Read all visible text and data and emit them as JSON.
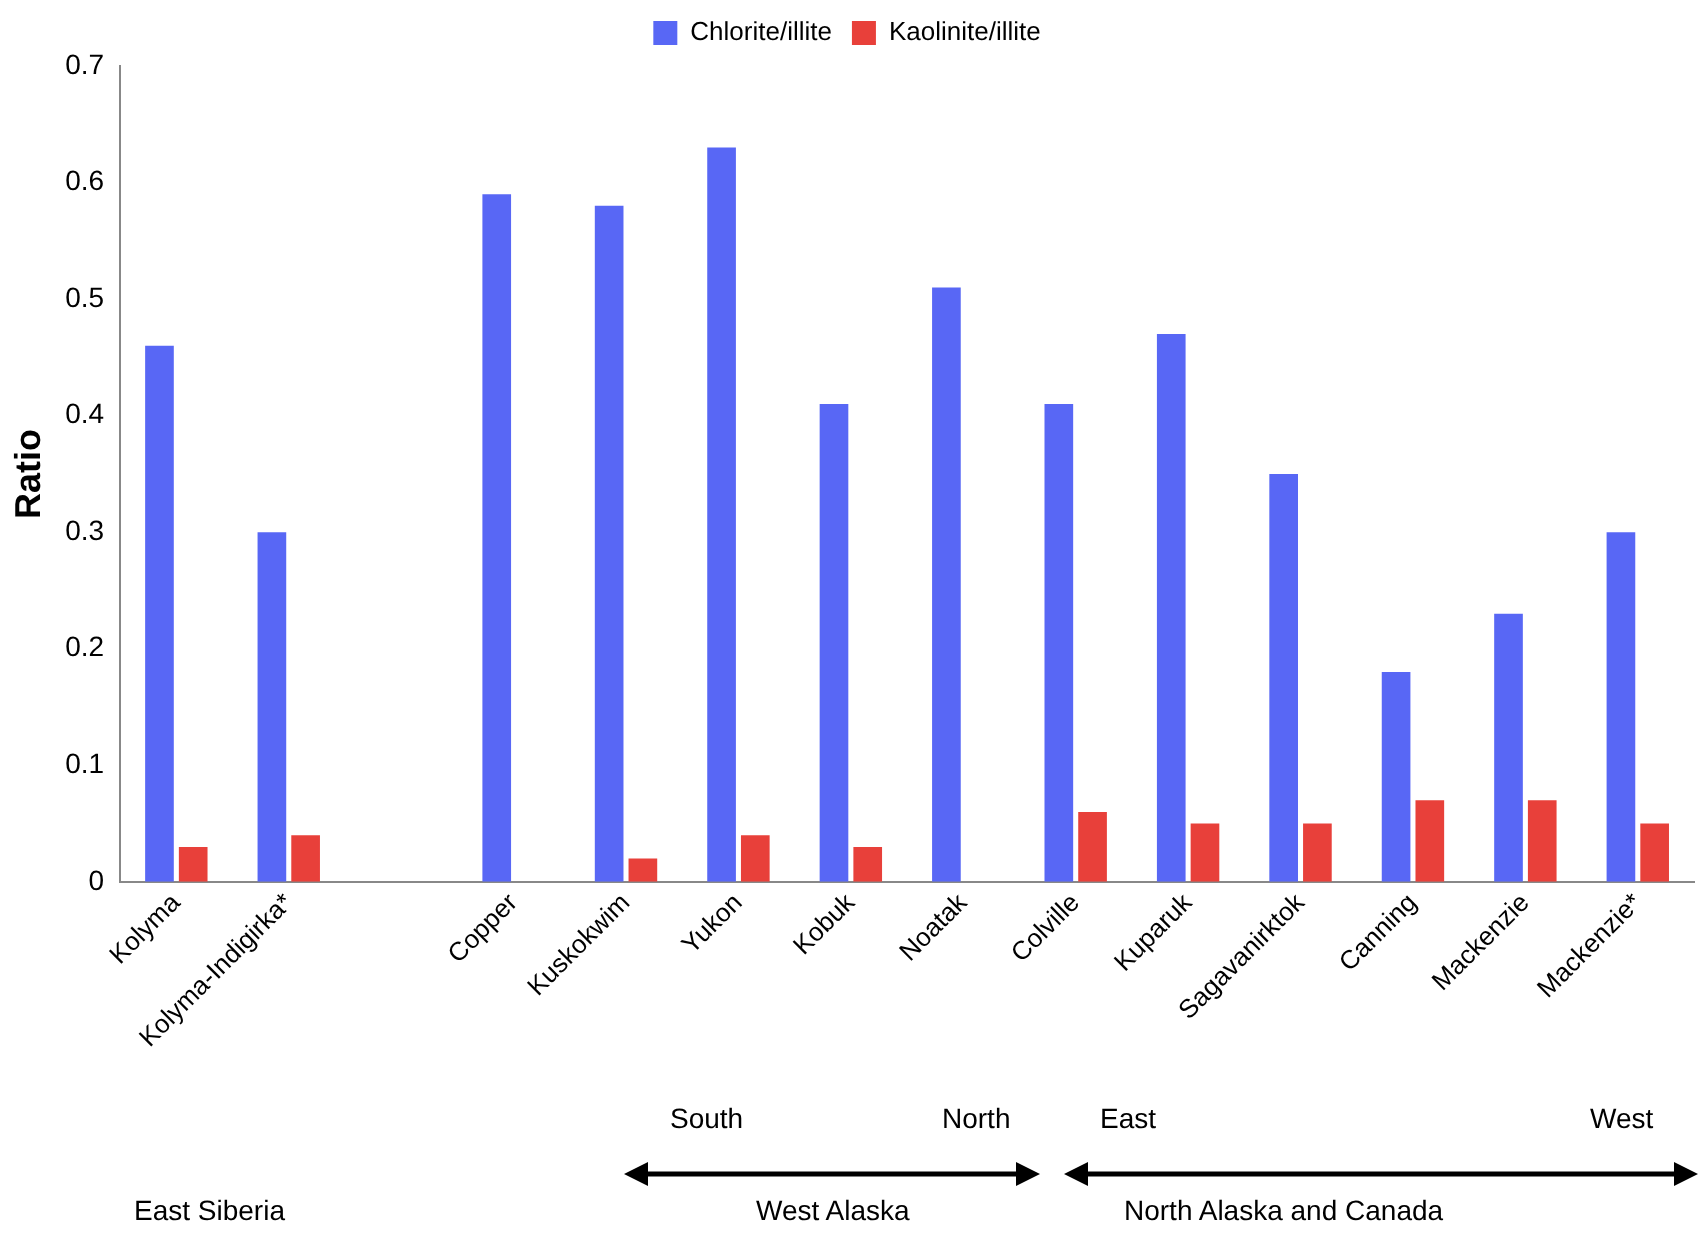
{
  "chart_data": {
    "type": "bar",
    "ylabel": "Ratio",
    "categories": [
      "Kolyma",
      "Kolyma-Indigirka*",
      null,
      "Copper",
      "Kuskokwim",
      "Yukon",
      "Kobuk",
      "Noatak",
      "Colville",
      "Kuparuk",
      "Sagavanirktok",
      "Canning",
      "Mackenzie",
      "Mackenzie*"
    ],
    "series": [
      {
        "name": "Chlorite/illite",
        "color": "#5867f5",
        "values": [
          0.46,
          0.3,
          null,
          0.59,
          0.58,
          0.63,
          0.41,
          0.51,
          0.41,
          0.47,
          0.35,
          0.18,
          0.23,
          0.3
        ]
      },
      {
        "name": "Kaolinite/illite",
        "color": "#e8403a",
        "values": [
          0.03,
          0.04,
          null,
          null,
          0.02,
          0.04,
          0.03,
          null,
          0.06,
          0.05,
          0.05,
          0.07,
          0.07,
          0.05
        ]
      }
    ],
    "ylim": [
      0,
      0.7
    ],
    "yticks": [
      0,
      0.1,
      0.2,
      0.3,
      0.4,
      0.5,
      0.6,
      0.7
    ],
    "grid": false,
    "legend": "top",
    "annotations": [
      "South",
      "North",
      "East",
      "West",
      "East Siberia",
      "West Alaska",
      "North Alaska and Canada"
    ]
  }
}
